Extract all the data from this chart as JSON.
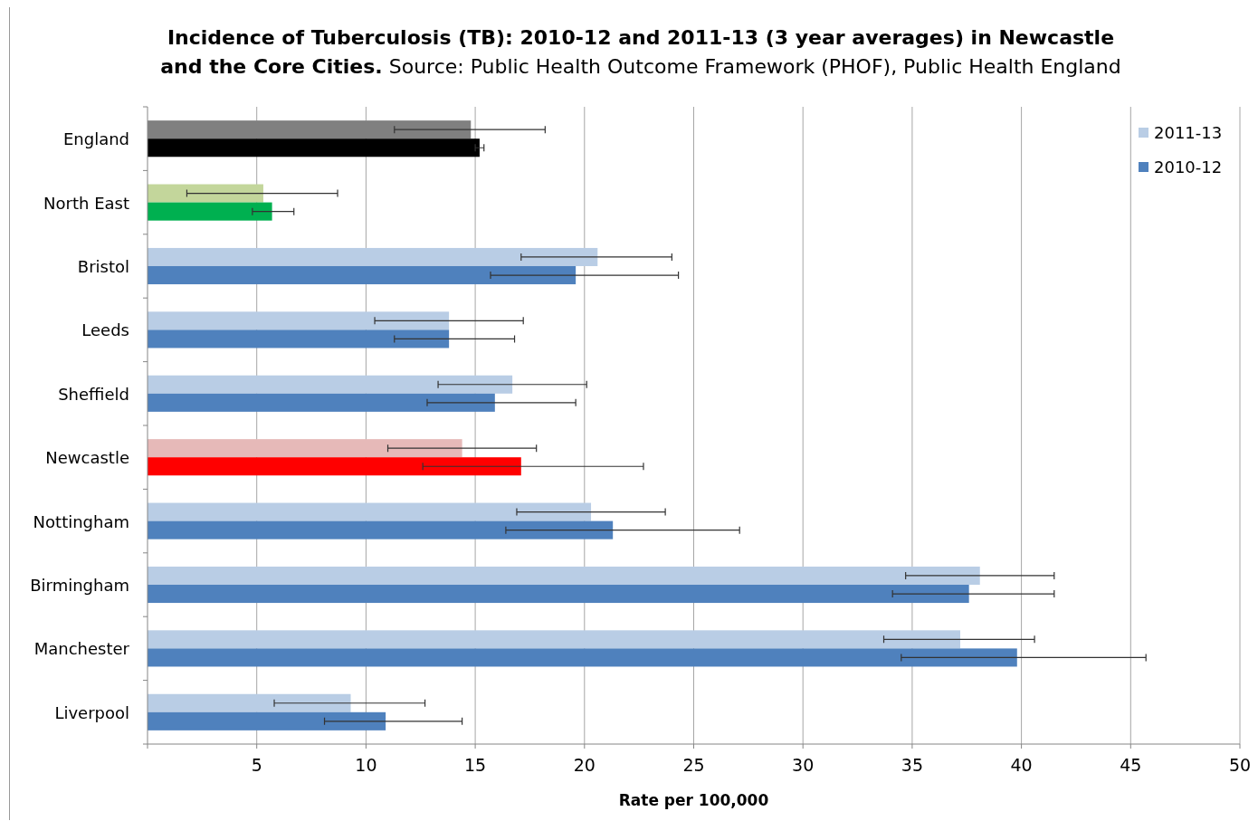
{
  "chart_data": {
    "type": "bar",
    "orientation": "horizontal",
    "title": "Incidence of Tuberculosis (TB): 2010-12 and 2011-13 (3 year averages) in Newcastle and the Core Cities.",
    "subtitle": "Source: Public Health Outcome Framework (PHOF), Public Health England",
    "xlabel": "Rate per 100,000",
    "categories": [
      "England",
      "North East",
      "Bristol",
      "Leeds",
      "Sheffield",
      "Newcastle",
      "Nottingham",
      "Birmingham",
      "Manchester",
      "Liverpool"
    ],
    "series": [
      {
        "name": "2011-13",
        "color": "#b9cde5",
        "colors": [
          "#808080",
          "#c3d69b",
          "#b9cde5",
          "#b9cde5",
          "#b9cde5",
          "#e6b9b8",
          "#b9cde5",
          "#b9cde5",
          "#b9cde5",
          "#b9cde5"
        ],
        "values": [
          14.8,
          5.3,
          20.6,
          13.8,
          16.7,
          14.4,
          20.3,
          38.1,
          37.2,
          9.3
        ],
        "errors": [
          [
            11.3,
            18.2
          ],
          [
            1.8,
            8.7
          ],
          [
            17.1,
            24.0
          ],
          [
            10.4,
            17.2
          ],
          [
            13.3,
            20.1
          ],
          [
            11.0,
            17.8
          ],
          [
            16.9,
            23.7
          ],
          [
            34.7,
            41.5
          ],
          [
            33.7,
            40.6
          ],
          [
            5.8,
            12.7
          ]
        ]
      },
      {
        "name": "2010-12",
        "color": "#4f81bd",
        "colors": [
          "#000000",
          "#00b050",
          "#4f81bd",
          "#4f81bd",
          "#4f81bd",
          "#ff0000",
          "#4f81bd",
          "#4f81bd",
          "#4f81bd",
          "#4f81bd"
        ],
        "values": [
          15.2,
          5.7,
          19.6,
          13.8,
          15.9,
          17.1,
          21.3,
          37.6,
          39.8,
          10.9
        ],
        "errors": [
          [
            15.0,
            15.4
          ],
          [
            4.8,
            6.7
          ],
          [
            15.7,
            24.3
          ],
          [
            11.3,
            16.8
          ],
          [
            12.8,
            19.6
          ],
          [
            12.6,
            22.7
          ],
          [
            16.4,
            27.1
          ],
          [
            34.1,
            41.5
          ],
          [
            34.5,
            45.7
          ],
          [
            8.1,
            14.4
          ]
        ]
      }
    ],
    "xlim": [
      0,
      50
    ],
    "xticks": [
      {
        "value": 0,
        "label": null
      },
      5,
      10,
      15,
      20,
      25,
      30,
      35,
      40,
      45,
      50
    ],
    "grid": "x",
    "legend": "top right"
  }
}
